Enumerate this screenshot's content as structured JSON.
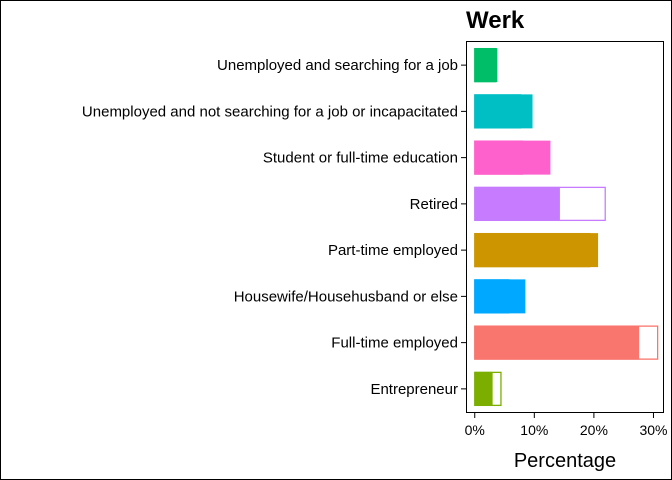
{
  "chart_data": {
    "type": "bar",
    "orientation": "horizontal",
    "title": "Werk",
    "xlabel": "Percentage",
    "ylabel": "",
    "xlim": [
      -1.3,
      31.6
    ],
    "x_ticks": [
      0,
      10,
      20,
      30
    ],
    "x_tick_labels": [
      "0%",
      "10%",
      "20%",
      "30%"
    ],
    "categories": [
      "Unemployed and searching for a job",
      "Unemployed and not searching for a job or incapacitated",
      "Student or full-time education",
      "Retired",
      "Part-time employed",
      "Housewife/Househusband or else",
      "Full-time employed",
      "Entrepreneur"
    ],
    "colors": [
      "#00BE67",
      "#00BFC4",
      "#FF61CC",
      "#C77CFF",
      "#CD9600",
      "#00A9FF",
      "#F8766D",
      "#7CAE00"
    ],
    "series": [
      {
        "style": "filled",
        "values": [
          3.8,
          9.7,
          12.7,
          14.3,
          20.7,
          8.5,
          27.6,
          3.0
        ]
      },
      {
        "style": "outline",
        "values": [
          3.5,
          7.7,
          8.0,
          21.9,
          19.3,
          5.7,
          30.7,
          4.4
        ]
      }
    ],
    "grid": false,
    "legend": "none"
  }
}
